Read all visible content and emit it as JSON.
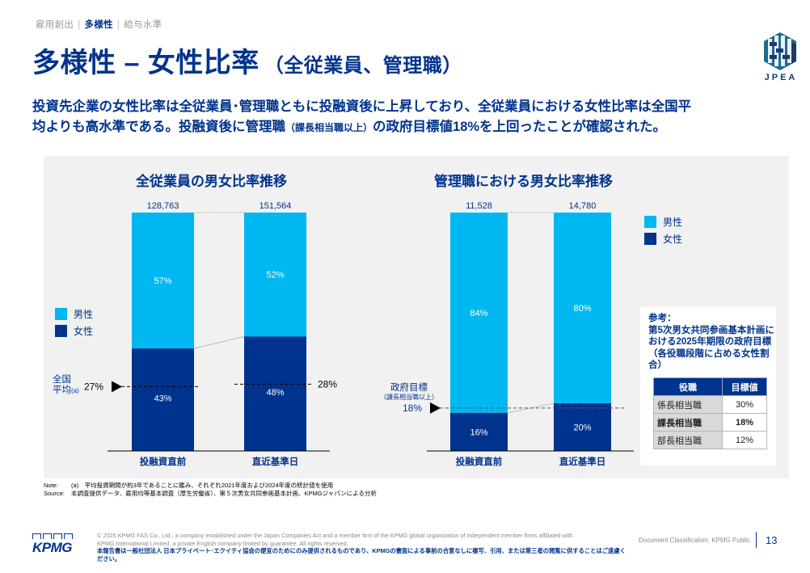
{
  "breadcrumb": {
    "items": [
      {
        "label": "雇用創出",
        "active": false
      },
      {
        "label": "多様性",
        "active": true
      },
      {
        "label": "給与水準",
        "active": false
      }
    ],
    "separator": "|"
  },
  "header": {
    "title": "多様性 – 女性比率",
    "subtitle": "（全従業員、管理職）",
    "logo_text": "JPEA"
  },
  "lead": {
    "line1": "投資先企業の女性比率は全従業員･管理職ともに投融資後に上昇しており、全従業員における女性比率は全国平",
    "line2a": "均よりも高水準である。投融資後に管理職",
    "line2b": "（課長相当職以上）",
    "line2c": "の政府目標値18%を上回ったことが確認された。"
  },
  "colors": {
    "male": "#00b8f1",
    "female": "#00338d",
    "brand": "#00338d",
    "panel": "#f1f1f1"
  },
  "legend": {
    "male": "男性",
    "female": "女性"
  },
  "chart_data": [
    {
      "type": "bar",
      "stacked": true,
      "title": "全従業員の男女比率推移",
      "categories": [
        "投融資直前",
        "直近基準日"
      ],
      "totals": [
        "128,763",
        "151,564"
      ],
      "series": [
        {
          "name": "女性",
          "values": [
            43,
            48
          ],
          "labels": [
            "43%",
            "48%"
          ]
        },
        {
          "name": "男性",
          "values": [
            57,
            52
          ],
          "labels": [
            "57%",
            "52%"
          ]
        }
      ],
      "ylim": [
        0,
        100
      ],
      "legend_position": "left",
      "reference_lines": [
        {
          "label": "全国平均(a)",
          "value": 27,
          "value_label": "27%",
          "applies_to": "投融資直前"
        },
        {
          "label": "",
          "value": 28,
          "value_label": "28%",
          "applies_to": "直近基準日"
        }
      ],
      "reference_label_line1": "全国",
      "reference_label_line2": "平均",
      "reference_label_note": "(a)"
    },
    {
      "type": "bar",
      "stacked": true,
      "title": "管理職における男女比率推移",
      "categories": [
        "投融資直前",
        "直近基準日"
      ],
      "totals": [
        "11,528",
        "14,780"
      ],
      "series": [
        {
          "name": "女性",
          "values": [
            16,
            20
          ],
          "labels": [
            "16%",
            "20%"
          ]
        },
        {
          "name": "男性",
          "values": [
            84,
            80
          ],
          "labels": [
            "84%",
            "80%"
          ]
        }
      ],
      "ylim": [
        0,
        100
      ],
      "legend_position": "top-right",
      "reference_lines": [
        {
          "label": "政府目標（課長相当職以上）",
          "value": 18,
          "value_label": "18%"
        }
      ],
      "reference_label_line1": "政府目標",
      "reference_label_line2": "（課長相当職以上）"
    }
  ],
  "reference": {
    "title_line1": "参考：",
    "title_body": "第5次男女共同参画基本計画における2025年期限の政府目標（各役職段階に占める女性割合）",
    "table": {
      "headers": [
        "役職",
        "目標値"
      ],
      "rows": [
        {
          "role": "係長相当職",
          "value": "30%",
          "bold": false
        },
        {
          "role": "課長相当職",
          "value": "18%",
          "bold": true
        },
        {
          "role": "部長相当職",
          "value": "12%",
          "bold": false
        }
      ]
    }
  },
  "notes": {
    "note_label": "Note:",
    "note_text": "(a)　平均投資期間が約3年であることに鑑み、それぞれ2021年度および2024年度の統計値を使用",
    "source_label": "Source:",
    "source_text": "本調査提供データ、雇用均等基本調査（厚生労働省）、第５次男女共同参画基本計画、KPMGジャパンによる分析"
  },
  "footer": {
    "kpmg_logo": "KPMG",
    "copyright_line1": "© 2025 KPMG FAS Co., Ltd., a company established under the Japan Companies Act and a member firm of the KPMG global organization of independent member firms affiliated with",
    "copyright_line2": "KPMG International Limited, a private English company limited by guarantee. All rights reserved.",
    "copyright_line3": "本報告書は一般社団法人 日本プライベート･エクイティ協会の便宜のためにのみ提供されるものであり、KPMGの書面による事前の合意なしに複写、引用、または第三者の閲覧に供することはご遠慮ください。",
    "classification": "Document Classification: KPMG Public",
    "page_number": "13"
  }
}
